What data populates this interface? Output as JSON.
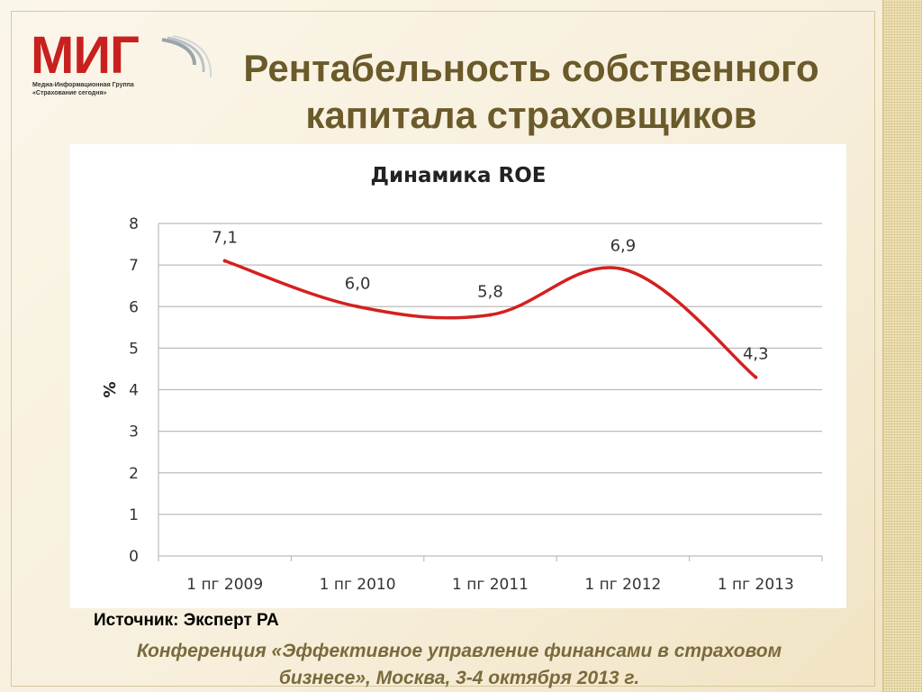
{
  "logo": {
    "name": "МИГ",
    "subtitle_line1": "Медиа-Информационная Группа",
    "subtitle_line2": "«Страхование сегодня»"
  },
  "slide": {
    "title_line1": "Рентабельность собственного",
    "title_line2": "капитала страховщиков",
    "source": "Источник: Эксперт РА",
    "footer_line1": "Конференция «Эффективное управление финансами в страховом",
    "footer_line2": "бизнесе», Москва, 3-4 октября 2013 г."
  },
  "colors": {
    "line": "#d42020",
    "grid": "#bcbcbc",
    "title_text": "#6b5a2a",
    "logo_red": "#c8201f"
  },
  "chart_data": {
    "type": "line",
    "title": "Динамика ROE",
    "ylabel": "%",
    "xlabel": "",
    "categories": [
      "1 пг 2009",
      "1 пг 2010",
      "1 пг 2011",
      "1 пг 2012",
      "1 пг 2013"
    ],
    "series": [
      {
        "values": [
          7.1,
          6.0,
          5.8,
          6.9,
          4.3
        ]
      }
    ],
    "data_labels": [
      "7,1",
      "6,0",
      "5,8",
      "6,9",
      "4,3"
    ],
    "ylim": [
      0,
      8
    ],
    "yticks": [
      0,
      1,
      2,
      3,
      4,
      5,
      6,
      7,
      8
    ],
    "grid": true,
    "smooth": true,
    "legend": "none"
  }
}
